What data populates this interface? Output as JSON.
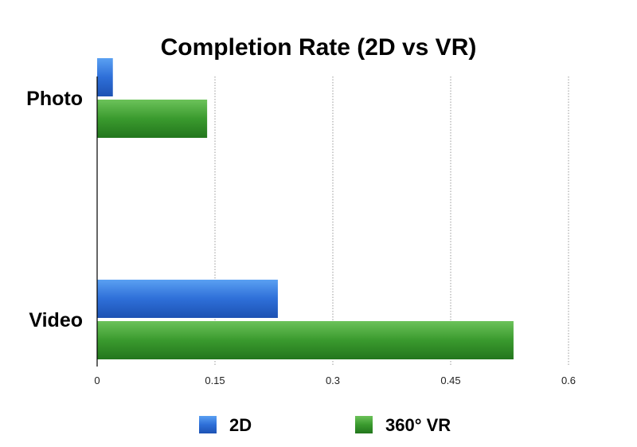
{
  "chart_data": {
    "type": "bar",
    "orientation": "horizontal",
    "title": "Completion Rate (2D vs VR)",
    "xlabel": "",
    "ylabel": "",
    "categories": [
      "Photo",
      "Video"
    ],
    "series": [
      {
        "name": "2D",
        "values": [
          0.02,
          0.23
        ],
        "color": "#2e6fd8"
      },
      {
        "name": "360° VR",
        "values": [
          0.14,
          0.53
        ],
        "color": "#3a9a2e"
      }
    ],
    "xlim": [
      0,
      0.6
    ],
    "xticks": [
      0,
      0.15,
      0.3,
      0.45,
      0.6
    ],
    "xtick_labels": [
      "0",
      "0.15",
      "0.3",
      "0.45",
      "0.6"
    ],
    "grid": "vertical-dotted",
    "legend_position": "bottom"
  }
}
